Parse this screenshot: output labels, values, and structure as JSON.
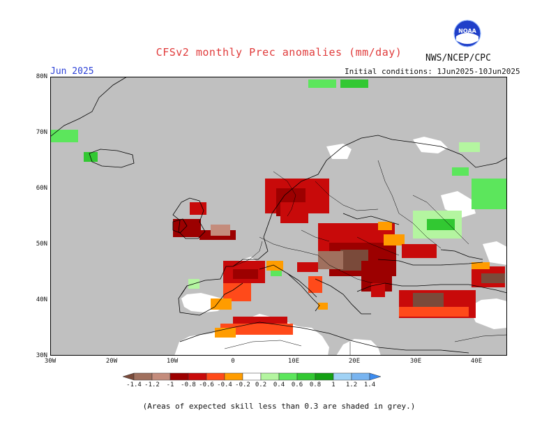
{
  "title": "CFSv2 monthly Prec anomalies (mm/day)",
  "period": "Jun 2025",
  "initial_conditions": "Initial conditions: 1Jun2025-10Jun2025",
  "agency": "NWS/NCEP/CPC",
  "logo_text": "NOAA",
  "footnote": "(Areas of expected skill less than 0.3 are shaded in grey.)",
  "map": {
    "region": "Europe",
    "lat_labels": [
      "80N",
      "70N",
      "60N",
      "50N",
      "40N",
      "30N"
    ],
    "lon_labels": [
      "30W",
      "20W",
      "10W",
      "0",
      "10E",
      "20E",
      "30E",
      "40E"
    ],
    "background_low_skill_color": "#c0c0c0",
    "land_no_signal_color": "#ffffff"
  },
  "legend": {
    "labels": [
      "-1.4",
      "-1.2",
      "-1",
      "-0.8",
      "-0.6",
      "-0.4",
      "-0.2",
      "0.2",
      "0.4",
      "0.6",
      "0.8",
      "1",
      "1.2",
      "1.4"
    ],
    "colors": [
      "#7a4a3a",
      "#a0705e",
      "#c48c7c",
      "#9c0000",
      "#c80a0a",
      "#ff4a1a",
      "#ff9c00",
      "#ffffff",
      "#b4f5a0",
      "#5ce65c",
      "#32c832",
      "#14a014",
      "#a0d2f5",
      "#78b4f0",
      "#3c8cf0"
    ]
  }
}
